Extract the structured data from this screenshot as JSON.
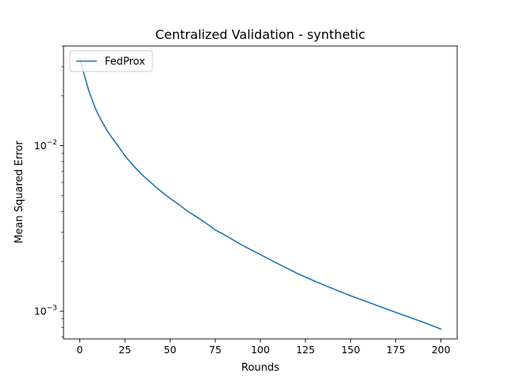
{
  "chart_data": {
    "type": "line",
    "title": "Centralized Validation - synthetic",
    "xlabel": "Rounds",
    "ylabel": "Mean Squared Error",
    "xlim": [
      -9,
      209
    ],
    "ylim": [
      0.00068,
      0.04
    ],
    "yscale": "log",
    "xticks": [
      0,
      25,
      50,
      75,
      100,
      125,
      150,
      175,
      200
    ],
    "yticks_major": [
      {
        "value": 0.001,
        "base": "10",
        "exp": "−3"
      },
      {
        "value": 0.01,
        "base": "10",
        "exp": "−2"
      }
    ],
    "grid": false,
    "legend_position": "upper-left",
    "series": [
      {
        "name": "FedProx",
        "color": "#1f77b4",
        "x": [
          0,
          2,
          5,
          8,
          10,
          12,
          15,
          18,
          20,
          25,
          30,
          35,
          40,
          45,
          50,
          55,
          60,
          65,
          70,
          75,
          80,
          90,
          100,
          110,
          120,
          130,
          140,
          150,
          160,
          170,
          180,
          190,
          200
        ],
        "y": [
          0.034,
          0.028,
          0.0215,
          0.0175,
          0.0156,
          0.0142,
          0.0124,
          0.0111,
          0.0104,
          0.0087,
          0.0075,
          0.0066,
          0.0059,
          0.0053,
          0.0048,
          0.0044,
          0.004,
          0.0037,
          0.0034,
          0.0031,
          0.0029,
          0.0025,
          0.0022,
          0.00193,
          0.0017,
          0.00152,
          0.00137,
          0.00124,
          0.00113,
          0.00103,
          0.00094,
          0.00086,
          0.00078
        ]
      }
    ]
  }
}
